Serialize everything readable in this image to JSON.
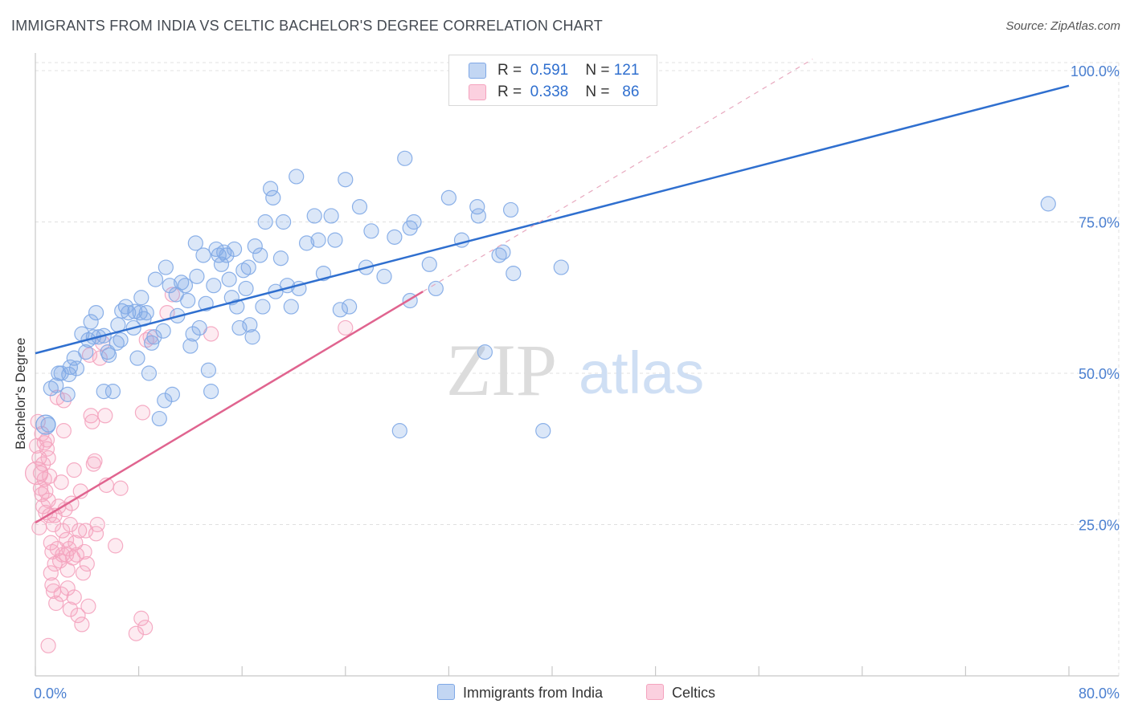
{
  "header": {
    "title": "IMMIGRANTS FROM INDIA VS CELTIC BACHELOR'S DEGREE CORRELATION CHART",
    "source": "Source: ZipAtlas.com"
  },
  "watermark": {
    "zip": "ZIP",
    "atlas": "atlas"
  },
  "legend": {
    "rows": [
      {
        "r_label": "R =",
        "r_value": "0.591",
        "n_label": "N =",
        "n_value": "121"
      },
      {
        "r_label": "R =",
        "r_value": "0.338",
        "n_label": "N =",
        "n_value": "86"
      }
    ]
  },
  "bottom_legend": {
    "india": "Immigrants from India",
    "celtics": "Celtics"
  },
  "chart_data": {
    "type": "scatter",
    "title": "IMMIGRANTS FROM INDIA VS CELTIC BACHELOR'S DEGREE CORRELATION CHART",
    "xlabel": "",
    "ylabel": "Bachelor's Degree",
    "xlim": [
      0,
      80
    ],
    "ylim": [
      0,
      100
    ],
    "x_tick_labels": {
      "left": "0.0%",
      "right": "80.0%"
    },
    "y_tick_labels": [
      "25.0%",
      "50.0%",
      "75.0%",
      "100.0%"
    ],
    "y_tick_values": [
      25,
      50,
      75,
      100
    ],
    "grid": true,
    "series": [
      {
        "name": "Immigrants from India",
        "color": "#7fa8e6",
        "trend_color": "#2f6fcf",
        "r": 0.591,
        "n": 121,
        "trend": {
          "x1": 0,
          "y1": 53.3,
          "x2": 80,
          "y2": 97.5
        },
        "points": [
          [
            1.0,
            41.5
          ],
          [
            1.2,
            47.5
          ],
          [
            1.6,
            48.0
          ],
          [
            1.8,
            50.0
          ],
          [
            2.0,
            50.0
          ],
          [
            2.6,
            49.8
          ],
          [
            2.7,
            51.0
          ],
          [
            3.0,
            52.5
          ],
          [
            3.2,
            50.8
          ],
          [
            3.6,
            56.5
          ],
          [
            3.9,
            53.5
          ],
          [
            4.1,
            55.5
          ],
          [
            4.5,
            56.0
          ],
          [
            4.7,
            60.0
          ],
          [
            4.9,
            56.0
          ],
          [
            5.3,
            56.2
          ],
          [
            5.6,
            53.5
          ],
          [
            5.7,
            53.0
          ],
          [
            5.3,
            47.0
          ],
          [
            6.3,
            55.0
          ],
          [
            6.6,
            55.5
          ],
          [
            6.4,
            58.0
          ],
          [
            6.7,
            60.3
          ],
          [
            7.2,
            60.0
          ],
          [
            7.6,
            57.5
          ],
          [
            7.7,
            60.2
          ],
          [
            7.9,
            52.5
          ],
          [
            8.1,
            60.0
          ],
          [
            8.2,
            62.5
          ],
          [
            8.4,
            59.0
          ],
          [
            8.6,
            60.0
          ],
          [
            9.0,
            55.0
          ],
          [
            9.2,
            56.0
          ],
          [
            9.3,
            65.5
          ],
          [
            9.6,
            42.5
          ],
          [
            9.9,
            57.0
          ],
          [
            10.1,
            67.5
          ],
          [
            10.4,
            64.5
          ],
          [
            10.6,
            46.5
          ],
          [
            10.9,
            63.0
          ],
          [
            11.3,
            65.0
          ],
          [
            11.6,
            64.5
          ],
          [
            11.8,
            62.0
          ],
          [
            12.0,
            54.5
          ],
          [
            12.2,
            56.5
          ],
          [
            12.4,
            71.5
          ],
          [
            12.5,
            66.0
          ],
          [
            12.7,
            57.5
          ],
          [
            13.0,
            69.5
          ],
          [
            13.2,
            61.5
          ],
          [
            13.4,
            50.5
          ],
          [
            13.6,
            47.0
          ],
          [
            13.8,
            64.5
          ],
          [
            14.0,
            70.5
          ],
          [
            14.2,
            69.5
          ],
          [
            14.4,
            68.0
          ],
          [
            14.6,
            70.0
          ],
          [
            14.8,
            69.5
          ],
          [
            15.2,
            62.5
          ],
          [
            15.4,
            70.5
          ],
          [
            15.6,
            61.0
          ],
          [
            15.8,
            57.5
          ],
          [
            16.1,
            67.0
          ],
          [
            16.3,
            64.0
          ],
          [
            16.5,
            67.5
          ],
          [
            16.8,
            56.0
          ],
          [
            17.0,
            71.0
          ],
          [
            17.4,
            69.5
          ],
          [
            17.6,
            61.0
          ],
          [
            17.8,
            75.0
          ],
          [
            18.2,
            80.5
          ],
          [
            18.4,
            79.0
          ],
          [
            18.6,
            63.5
          ],
          [
            19.2,
            75.0
          ],
          [
            19.5,
            64.5
          ],
          [
            19.8,
            61.0
          ],
          [
            20.2,
            82.5
          ],
          [
            20.4,
            64.0
          ],
          [
            21.6,
            76.0
          ],
          [
            21.9,
            72.0
          ],
          [
            22.3,
            66.5
          ],
          [
            22.9,
            76.0
          ],
          [
            23.6,
            60.5
          ],
          [
            23.2,
            72.0
          ],
          [
            24.0,
            82.0
          ],
          [
            24.3,
            61.0
          ],
          [
            25.1,
            77.5
          ],
          [
            25.6,
            67.5
          ],
          [
            27.0,
            66.0
          ],
          [
            27.8,
            72.5
          ],
          [
            28.2,
            40.5
          ],
          [
            28.6,
            85.5
          ],
          [
            29.0,
            74.0
          ],
          [
            29.3,
            75.0
          ],
          [
            29.0,
            62.0
          ],
          [
            31.0,
            64.0
          ],
          [
            32.0,
            79.0
          ],
          [
            33.0,
            72.0
          ],
          [
            34.2,
            77.5
          ],
          [
            34.3,
            76.0
          ],
          [
            34.8,
            53.5
          ],
          [
            35.9,
            69.5
          ],
          [
            36.2,
            70.0
          ],
          [
            36.8,
            77.0
          ],
          [
            37.0,
            66.5
          ],
          [
            39.3,
            40.5
          ],
          [
            40.7,
            67.5
          ],
          [
            78.4,
            78.0
          ],
          [
            6.0,
            47.0
          ],
          [
            2.5,
            46.5
          ],
          [
            10.0,
            45.5
          ],
          [
            30.5,
            68.0
          ],
          [
            21.0,
            71.5
          ],
          [
            16.6,
            58.0
          ],
          [
            7.0,
            61.0
          ],
          [
            4.3,
            58.5
          ],
          [
            11.0,
            59.5
          ],
          [
            19.0,
            69.0
          ],
          [
            26.0,
            73.5
          ],
          [
            8.8,
            50.0
          ],
          [
            15.0,
            65.5
          ]
        ]
      },
      {
        "name": "Celtics",
        "color": "#f4a3be",
        "trend_color": "#e0648f",
        "r": 0.338,
        "n": 86,
        "trend": {
          "x1": 0,
          "y1": 25.3,
          "x2": 30,
          "y2": 63.5
        },
        "points": [
          [
            0.1,
            38.0
          ],
          [
            0.2,
            42.0
          ],
          [
            0.3,
            36.0
          ],
          [
            0.4,
            31.0
          ],
          [
            0.4,
            33.5
          ],
          [
            0.5,
            40.0
          ],
          [
            0.5,
            30.0
          ],
          [
            0.6,
            28.0
          ],
          [
            0.6,
            35.0
          ],
          [
            0.7,
            38.5
          ],
          [
            0.7,
            32.5
          ],
          [
            0.8,
            30.5
          ],
          [
            0.8,
            27.0
          ],
          [
            0.9,
            39.0
          ],
          [
            0.9,
            37.5
          ],
          [
            1.0,
            36.0
          ],
          [
            1.0,
            29.0
          ],
          [
            1.1,
            26.5
          ],
          [
            1.1,
            33.0
          ],
          [
            1.2,
            22.0
          ],
          [
            1.2,
            17.0
          ],
          [
            1.3,
            15.0
          ],
          [
            1.3,
            20.5
          ],
          [
            1.4,
            14.0
          ],
          [
            1.4,
            25.0
          ],
          [
            1.5,
            26.5
          ],
          [
            1.5,
            18.5
          ],
          [
            1.6,
            12.0
          ],
          [
            1.7,
            21.0
          ],
          [
            1.7,
            46.0
          ],
          [
            1.8,
            28.0
          ],
          [
            1.9,
            19.0
          ],
          [
            2.0,
            13.5
          ],
          [
            2.0,
            32.0
          ],
          [
            2.1,
            24.0
          ],
          [
            2.1,
            20.0
          ],
          [
            2.2,
            40.5
          ],
          [
            2.2,
            45.5
          ],
          [
            2.3,
            27.5
          ],
          [
            2.4,
            22.5
          ],
          [
            2.4,
            20.0
          ],
          [
            2.5,
            14.5
          ],
          [
            2.5,
            17.5
          ],
          [
            2.6,
            21.0
          ],
          [
            2.7,
            11.0
          ],
          [
            2.7,
            25.0
          ],
          [
            2.8,
            28.5
          ],
          [
            2.9,
            19.5
          ],
          [
            3.0,
            34.0
          ],
          [
            3.0,
            13.0
          ],
          [
            3.1,
            22.0
          ],
          [
            3.2,
            20.0
          ],
          [
            3.3,
            10.0
          ],
          [
            3.4,
            24.0
          ],
          [
            3.5,
            30.5
          ],
          [
            3.6,
            8.5
          ],
          [
            3.7,
            17.0
          ],
          [
            3.8,
            20.5
          ],
          [
            3.9,
            24.0
          ],
          [
            4.0,
            18.5
          ],
          [
            4.1,
            11.5
          ],
          [
            4.2,
            53.0
          ],
          [
            4.3,
            43.0
          ],
          [
            4.4,
            42.0
          ],
          [
            4.5,
            35.0
          ],
          [
            4.6,
            35.5
          ],
          [
            4.7,
            23.5
          ],
          [
            4.8,
            25.0
          ],
          [
            5.0,
            52.5
          ],
          [
            5.2,
            55.0
          ],
          [
            5.4,
            43.0
          ],
          [
            5.5,
            31.5
          ],
          [
            6.2,
            21.5
          ],
          [
            6.6,
            31.0
          ],
          [
            7.8,
            7.0
          ],
          [
            8.2,
            9.5
          ],
          [
            8.3,
            43.5
          ],
          [
            8.5,
            8.0
          ],
          [
            8.6,
            55.5
          ],
          [
            8.9,
            56.0
          ],
          [
            10.2,
            60.0
          ],
          [
            10.6,
            63.0
          ],
          [
            13.6,
            56.5
          ],
          [
            24.0,
            57.5
          ],
          [
            1.0,
            5.0
          ],
          [
            0.3,
            24.5
          ]
        ]
      }
    ]
  }
}
